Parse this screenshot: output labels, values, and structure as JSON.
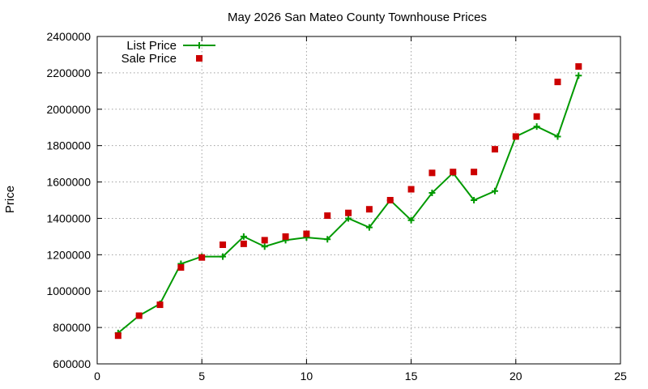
{
  "chart_data": {
    "type": "line",
    "title": "May 2026 San Mateo County Townhouse Prices",
    "xlabel": "",
    "ylabel": "Price",
    "xlim": [
      0,
      25
    ],
    "ylim": [
      600000,
      2400000
    ],
    "xticks": [
      "0",
      "5",
      "10",
      "15",
      "20",
      "25"
    ],
    "yticks": [
      "600000",
      "800000",
      "1000000",
      "1200000",
      "1400000",
      "1600000",
      "1800000",
      "2000000",
      "2200000",
      "2400000"
    ],
    "grid": true,
    "legend_position": "top-left",
    "series": [
      {
        "name": "List Price",
        "style": "line-plus",
        "color": "#009900",
        "x": [
          1,
          2,
          3,
          4,
          5,
          6,
          7,
          8,
          9,
          10,
          11,
          12,
          13,
          14,
          15,
          16,
          17,
          18,
          19,
          20,
          21,
          22,
          23
        ],
        "y": [
          770000,
          865000,
          930000,
          1150000,
          1190000,
          1190000,
          1300000,
          1245000,
          1280000,
          1295000,
          1285000,
          1400000,
          1350000,
          1500000,
          1390000,
          1540000,
          1650000,
          1500000,
          1550000,
          1850000,
          1905000,
          1850000,
          2185000
        ]
      },
      {
        "name": "Sale Price",
        "style": "square",
        "color": "#cc0000",
        "x": [
          1,
          2,
          3,
          4,
          5,
          6,
          7,
          8,
          9,
          10,
          11,
          12,
          13,
          14,
          15,
          16,
          17,
          18,
          19,
          20,
          21,
          22,
          23
        ],
        "y": [
          755000,
          865000,
          925000,
          1130000,
          1185000,
          1255000,
          1260000,
          1280000,
          1300000,
          1315000,
          1415000,
          1430000,
          1450000,
          1500000,
          1560000,
          1650000,
          1655000,
          1655000,
          1780000,
          1850000,
          1960000,
          2150000,
          2235000
        ]
      }
    ]
  }
}
